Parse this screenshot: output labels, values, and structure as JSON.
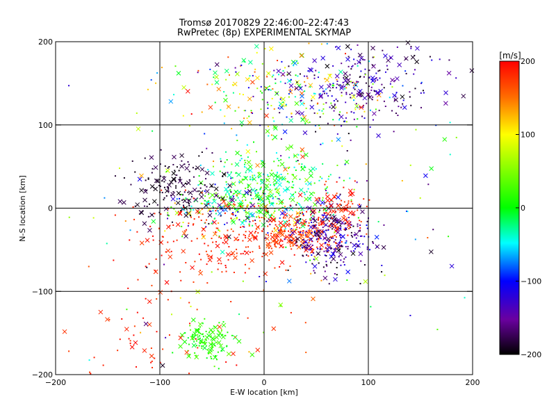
{
  "chart_data": {
    "type": "scatter",
    "title": "Tromsø 20170829 22:46:00–22:47:43",
    "subtitle": "RwPretec (8p) EXPERIMENTAL SKYMAP",
    "xlabel": "E-W location [km]",
    "ylabel": "N-S location [km]",
    "xlim": [
      -200,
      200
    ],
    "ylim": [
      -200,
      200
    ],
    "xticks": [
      -200,
      -100,
      0,
      100,
      200
    ],
    "yticks": [
      -200,
      -100,
      0,
      100,
      200
    ],
    "grid": true,
    "colorbar": {
      "label": "[m/s]",
      "range": [
        -200,
        200
      ],
      "ticks": [
        200,
        100,
        0,
        -100,
        -200
      ],
      "placement": "right"
    },
    "marker_types": [
      "dot",
      "x"
    ],
    "clusters": [
      {
        "x": 20,
        "y": 130,
        "sx": 45,
        "sy": 30,
        "vmin": -150,
        "vmax": 180,
        "n": 260
      },
      {
        "x": 95,
        "y": 150,
        "sx": 35,
        "sy": 25,
        "vmin": -200,
        "vmax": -110,
        "n": 240
      },
      {
        "x": 5,
        "y": 25,
        "sx": 30,
        "sy": 22,
        "vmin": -60,
        "vmax": 60,
        "n": 320
      },
      {
        "x": -80,
        "y": 25,
        "sx": 25,
        "sy": 20,
        "vmin": -200,
        "vmax": -170,
        "n": 160
      },
      {
        "x": -30,
        "y": -5,
        "sx": 30,
        "sy": 12,
        "vmin": -200,
        "vmax": 200,
        "n": 180
      },
      {
        "x": 30,
        "y": -30,
        "sx": 25,
        "sy": 15,
        "vmin": 150,
        "vmax": 200,
        "n": 260
      },
      {
        "x": 65,
        "y": -35,
        "sx": 20,
        "sy": 20,
        "vmin": -200,
        "vmax": -100,
        "n": 280
      },
      {
        "x": -60,
        "y": -40,
        "sx": 35,
        "sy": 25,
        "vmin": 170,
        "vmax": 200,
        "n": 150
      },
      {
        "x": 75,
        "y": 0,
        "sx": 15,
        "sy": 12,
        "vmin": 170,
        "vmax": 200,
        "n": 70
      },
      {
        "x": -55,
        "y": -160,
        "sx": 12,
        "sy": 12,
        "vmin": -10,
        "vmax": 40,
        "n": 120
      },
      {
        "x": -110,
        "y": -160,
        "sx": 40,
        "sy": 25,
        "vmin": 170,
        "vmax": 200,
        "n": 60
      },
      {
        "x": 0,
        "y": 0,
        "sx": 130,
        "sy": 130,
        "vmin": -200,
        "vmax": 200,
        "n": 220
      }
    ]
  }
}
